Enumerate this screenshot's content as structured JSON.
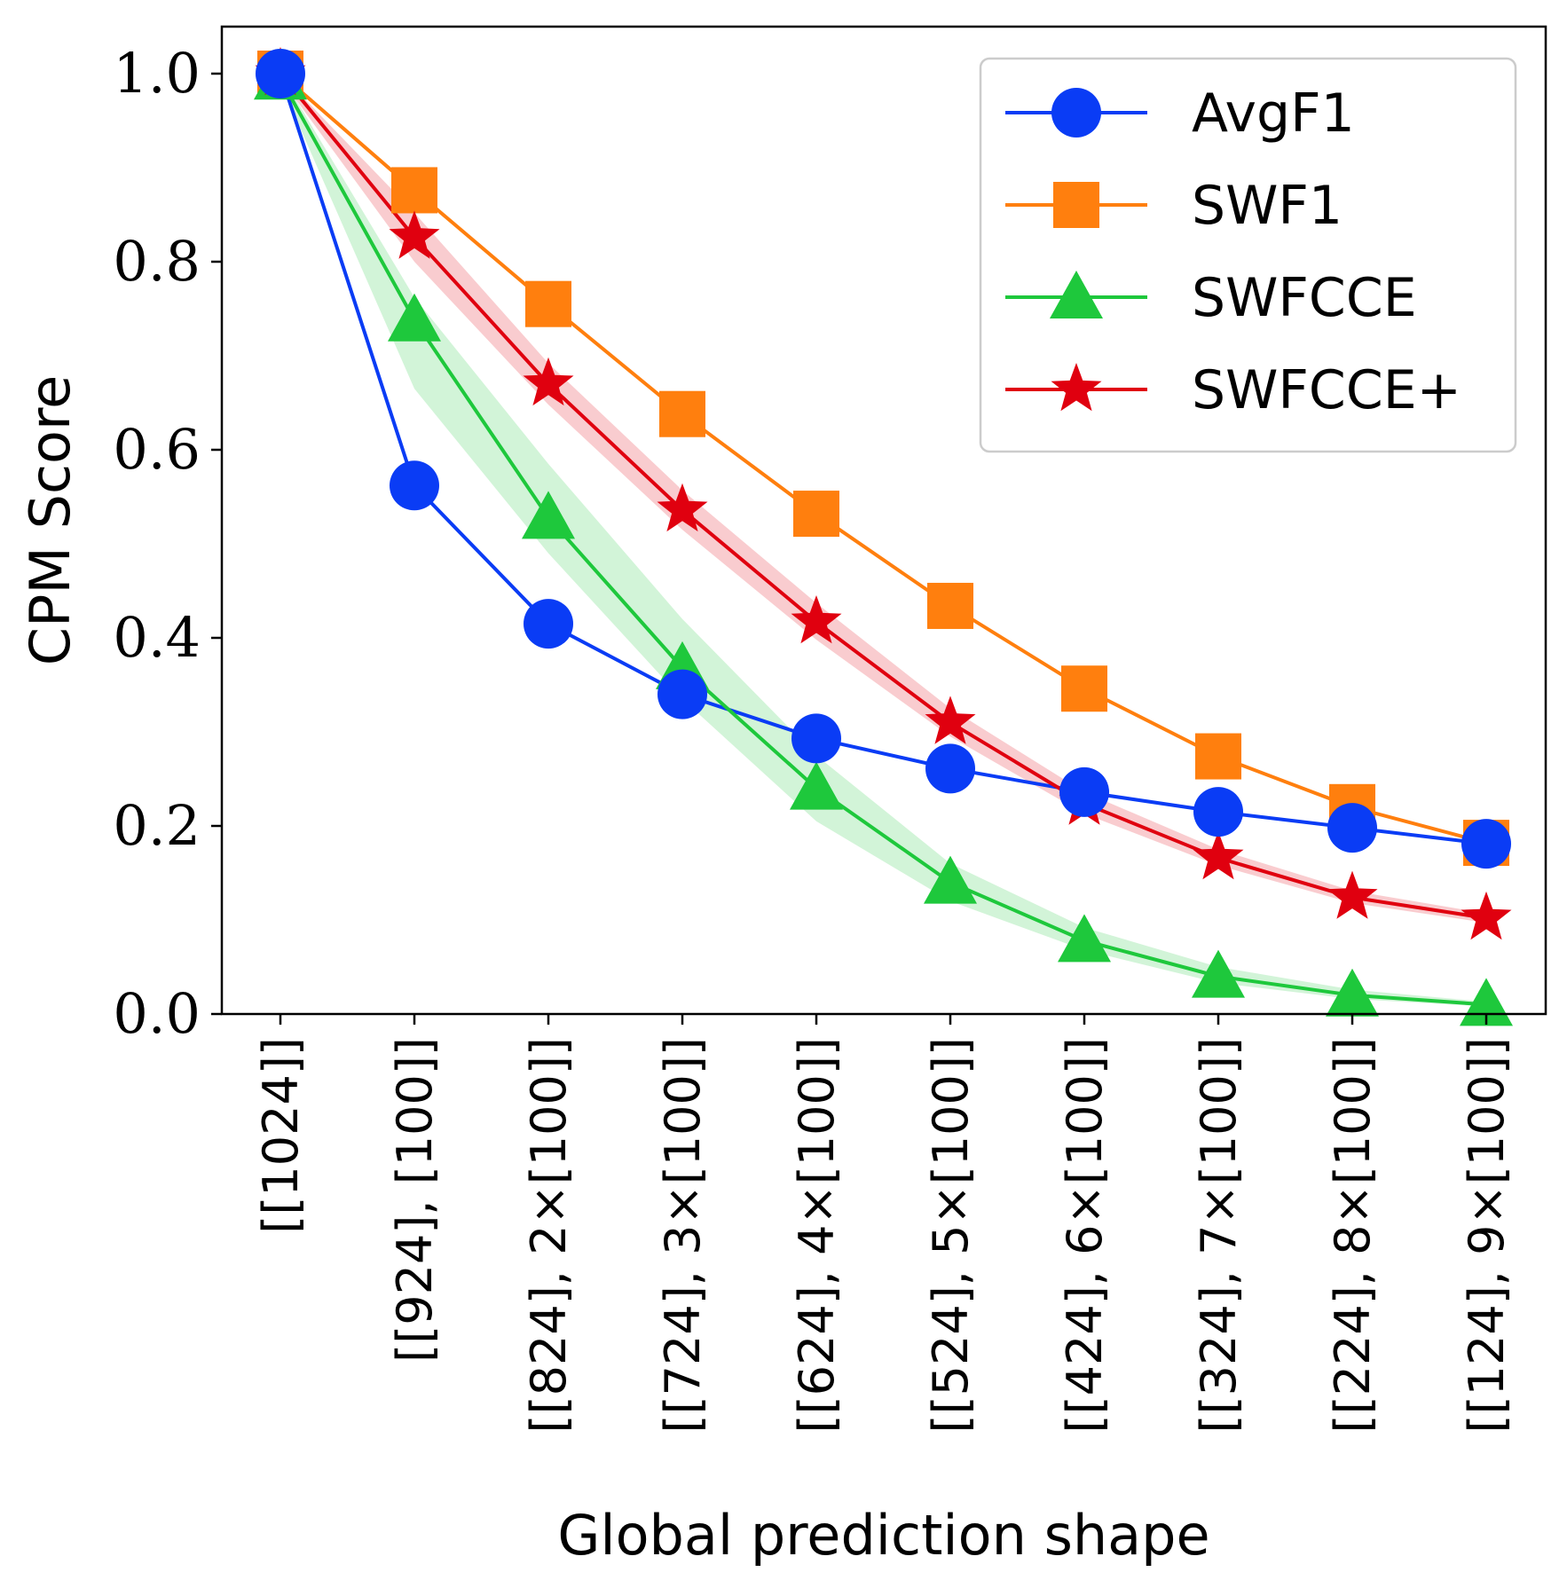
{
  "chart_data": {
    "type": "line",
    "xlabel": "Global prediction shape",
    "ylabel": "CPM Score",
    "ylim": [
      0.0,
      1.05
    ],
    "yticks": [
      0.0,
      0.2,
      0.4,
      0.6,
      0.8,
      1.0
    ],
    "ytick_labels": [
      "0.0",
      "0.2",
      "0.4",
      "0.6",
      "0.8",
      "1.0"
    ],
    "categories": [
      "[[1024]]",
      "[[924], [100]]",
      "[[824], 2×[100]]",
      "[[724], 3×[100]]",
      "[[624], 4×[100]]",
      "[[524], 5×[100]]",
      "[[424], 6×[100]]",
      "[[324], 7×[100]]",
      "[[224], 8×[100]]",
      "[[124], 9×[100]]"
    ],
    "legend_position": "top-right",
    "grid": false,
    "series": [
      {
        "name": "AvgF1",
        "color": "#0a3cf5",
        "marker": "circle",
        "values": [
          1.0,
          0.562,
          0.415,
          0.34,
          0.293,
          0.261,
          0.236,
          0.215,
          0.198,
          0.181
        ]
      },
      {
        "name": "SWF1",
        "color": "#ff7f0e",
        "marker": "square",
        "values": [
          1.0,
          0.876,
          0.755,
          0.638,
          0.532,
          0.434,
          0.346,
          0.274,
          0.22,
          0.182
        ]
      },
      {
        "name": "SWFCCE",
        "color": "#1ec83c",
        "marker": "triangle",
        "values": [
          0.995,
          0.738,
          0.528,
          0.368,
          0.24,
          0.14,
          0.078,
          0.04,
          0.02,
          0.01
        ],
        "band_lower": [
          0.99,
          0.665,
          0.49,
          0.335,
          0.205,
          0.12,
          0.068,
          0.033,
          0.016,
          0.008
        ],
        "band_upper": [
          1.0,
          0.762,
          0.585,
          0.42,
          0.275,
          0.16,
          0.092,
          0.05,
          0.026,
          0.013
        ]
      },
      {
        "name": "SWFCCE+",
        "color": "#e0000f",
        "marker": "star",
        "values": [
          1.0,
          0.826,
          0.67,
          0.536,
          0.417,
          0.31,
          0.224,
          0.166,
          0.124,
          0.102
        ],
        "band_lower": [
          0.995,
          0.8,
          0.648,
          0.515,
          0.398,
          0.295,
          0.213,
          0.158,
          0.118,
          0.097
        ],
        "band_upper": [
          1.0,
          0.852,
          0.692,
          0.557,
          0.437,
          0.325,
          0.236,
          0.175,
          0.131,
          0.107
        ]
      }
    ]
  }
}
